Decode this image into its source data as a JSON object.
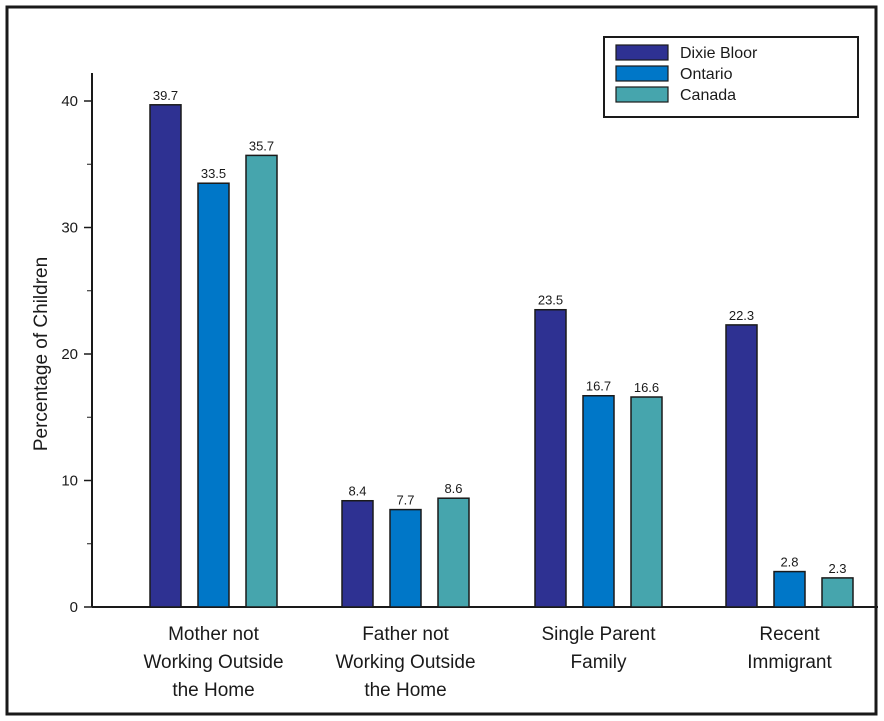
{
  "chart_data": {
    "type": "bar",
    "title": "",
    "ylabel": "Percentage of Children",
    "xlabel": "",
    "ylim": [
      0,
      40
    ],
    "yticks": [
      "0",
      "10",
      "20",
      "30",
      "40"
    ],
    "categories": [
      [
        "Mother not",
        "Working Outside",
        "the Home"
      ],
      [
        "Father not",
        "Working Outside",
        "the Home"
      ],
      [
        "Single Parent",
        "Family"
      ],
      [
        "Recent",
        "Immigrant"
      ]
    ],
    "series": [
      {
        "name": "Dixie Bloor",
        "color": "#2e3192",
        "values": [
          39.7,
          8.4,
          23.5,
          22.3
        ],
        "labels": [
          "39.7",
          "8.4",
          "23.5",
          "22.3"
        ]
      },
      {
        "name": "Ontario",
        "color": "#0077c8",
        "values": [
          33.5,
          7.7,
          16.7,
          2.8
        ],
        "labels": [
          "33.5",
          "7.7",
          "16.7",
          "2.8"
        ]
      },
      {
        "name": "Canada",
        "color": "#46a5ad",
        "values": [
          35.7,
          8.6,
          16.6,
          2.3
        ],
        "labels": [
          "35.7",
          "8.6",
          "16.6",
          "2.3"
        ]
      }
    ],
    "legend_position": "top-right",
    "grid": false
  }
}
